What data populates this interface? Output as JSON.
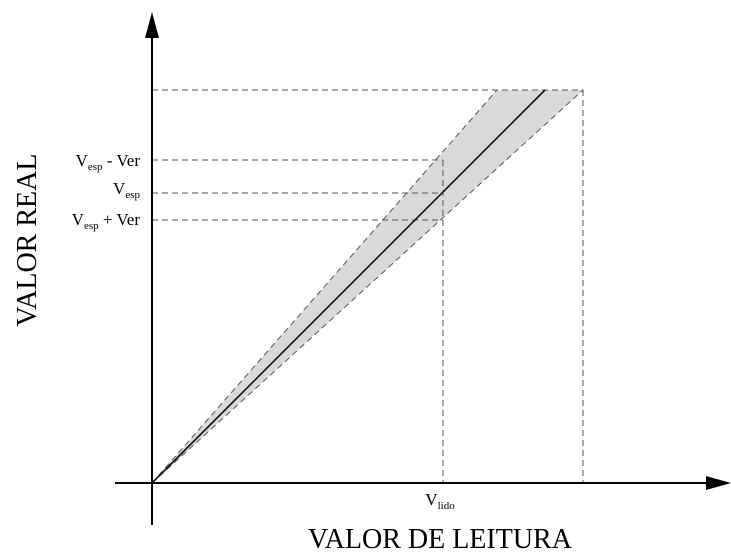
{
  "axes": {
    "y_title": "VALOR REAL",
    "x_title": "VALOR DE LEITURA"
  },
  "labels": [
    {
      "main": "V",
      "sub": "esp",
      "rest": " - Ver"
    },
    {
      "main": "V",
      "sub": "esp"
    },
    {
      "main": "V",
      "sub": "esp",
      "rest": " + Ver"
    },
    {
      "main": "V",
      "sub": "lido"
    }
  ]
}
